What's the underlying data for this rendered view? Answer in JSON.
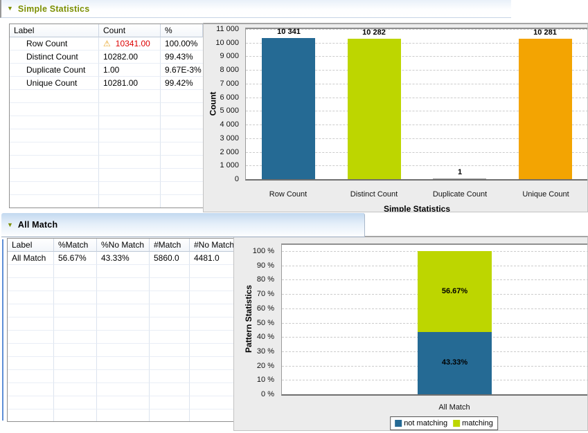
{
  "sections": [
    {
      "title": "Simple Statistics",
      "title_color": "#7c8f01",
      "collapse_icon": "triangle-down",
      "table": {
        "columns": [
          "Label",
          "Count",
          "%"
        ],
        "rows": [
          {
            "cells": [
              "Row Count",
              "10341.00",
              "100.00%"
            ],
            "warning_cell": 1
          },
          {
            "cells": [
              "Distinct Count",
              "10282.00",
              "99.43%"
            ]
          },
          {
            "cells": [
              "Duplicate Count",
              "1.00",
              "9.67E-3%"
            ]
          },
          {
            "cells": [
              "Unique Count",
              "10281.00",
              "99.42%"
            ]
          }
        ],
        "empty_rows": 9,
        "warning_icon": "⚠",
        "warning_value_color": "#dd0000"
      }
    },
    {
      "title": "All Match",
      "title_color": "#000000",
      "collapse_icon": "triangle-down",
      "table": {
        "columns": [
          "Label",
          "%Match",
          "%No Match",
          "#Match",
          "#No Match"
        ],
        "rows": [
          {
            "cells": [
              "All Match",
              "56.67%",
              "43.33%",
              "5860.0",
              "4481.0"
            ]
          }
        ],
        "empty_rows": 12
      }
    }
  ],
  "chart_data": [
    {
      "type": "bar",
      "title": "",
      "xlabel": "Simple Statistics",
      "ylabel": "Count",
      "categories": [
        "Row Count",
        "Distinct Count",
        "Duplicate Count",
        "Unique Count"
      ],
      "values": [
        10341,
        10282,
        1,
        10281
      ],
      "value_labels": [
        "10 341",
        "10 282",
        "1",
        "10 281"
      ],
      "bar_colors": [
        "#256a94",
        "#bdd600",
        "#9b9b9b",
        "#f3a402"
      ],
      "ylim": [
        0,
        11000
      ],
      "ytick_labels": [
        "0",
        "1 000",
        "2 000",
        "3 000",
        "4 000",
        "5 000",
        "6 000",
        "7 000",
        "8 000",
        "9 000",
        "10 000",
        "11 000"
      ],
      "grid": "dashed-horizontal",
      "legend": "none"
    },
    {
      "type": "stacked-bar",
      "title": "",
      "xlabel": "",
      "ylabel": "Pattern Statistics",
      "categories": [
        "All Match"
      ],
      "series": [
        {
          "name": "not matching",
          "color": "#256a94",
          "values": [
            43.33
          ],
          "value_labels": [
            "43.33%"
          ]
        },
        {
          "name": "matching",
          "color": "#bdd600",
          "values": [
            56.67
          ],
          "value_labels": [
            "56.67%"
          ]
        }
      ],
      "ylim": [
        0,
        100
      ],
      "ytick_labels": [
        "0 %",
        "10 %",
        "20 %",
        "30 %",
        "40 %",
        "50 %",
        "60 %",
        "70 %",
        "80 %",
        "90 %",
        "100 %"
      ],
      "grid": "dashed-horizontal",
      "legend": {
        "position": "bottom",
        "items": [
          "not matching",
          "matching"
        ]
      }
    }
  ],
  "colors": {
    "panel_background": "#ececec",
    "bar_blue": "#256a94",
    "bar_green": "#bdd600",
    "bar_orange": "#f3a402",
    "warning_red": "#dd0000",
    "warning_amber": "#e7a426",
    "section_title_olive": "#7c8f01"
  }
}
